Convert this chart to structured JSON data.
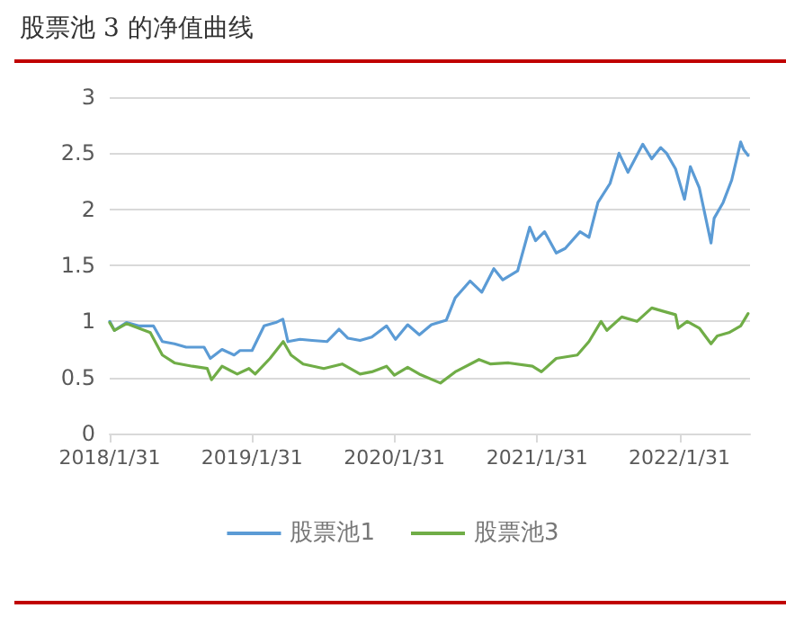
{
  "chart_data": {
    "type": "line",
    "title": "股票池 3 的净值曲线",
    "xlim": [
      "2018-01-31",
      "2022-07-31"
    ],
    "xticks": [
      {
        "value": "2018-01-31",
        "label": "2018/1/31"
      },
      {
        "value": "2019-01-31",
        "label": "2019/1/31"
      },
      {
        "value": "2020-01-31",
        "label": "2020/1/31"
      },
      {
        "value": "2021-01-31",
        "label": "2021/1/31"
      },
      {
        "value": "2022-01-31",
        "label": "2022/1/31"
      }
    ],
    "ylim": [
      0,
      3
    ],
    "yticks": [
      0,
      0.5,
      1,
      1.5,
      2,
      2.5,
      3
    ],
    "grid": "y",
    "legend": "bottom",
    "marker": "none",
    "line_style": "solid",
    "series": [
      {
        "name": "股票池1",
        "color": "#5b9bd5",
        "x": [
          "2018-01-31",
          "2018-02-12",
          "2018-03-15",
          "2018-04-15",
          "2018-05-23",
          "2018-06-15",
          "2018-07-16",
          "2018-08-15",
          "2018-09-30",
          "2018-10-16",
          "2018-11-15",
          "2018-12-16",
          "2018-12-31",
          "2019-01-31",
          "2019-03-03",
          "2019-04-02",
          "2019-04-20",
          "2019-05-03",
          "2019-06-03",
          "2019-07-04",
          "2019-08-11",
          "2019-09-11",
          "2019-10-04",
          "2019-11-04",
          "2019-12-04",
          "2020-01-11",
          "2020-02-03",
          "2020-03-05",
          "2020-04-04",
          "2020-05-05",
          "2020-06-12",
          "2020-07-05",
          "2020-08-12",
          "2020-09-11",
          "2020-10-12",
          "2020-11-04",
          "2020-12-12",
          "2021-01-12",
          "2021-01-27",
          "2021-02-19",
          "2021-03-21",
          "2021-04-13",
          "2021-05-21",
          "2021-06-13",
          "2021-07-06",
          "2021-08-06",
          "2021-08-29",
          "2021-09-21",
          "2021-10-29",
          "2021-11-21",
          "2021-12-14",
          "2021-12-29",
          "2022-01-21",
          "2022-02-13",
          "2022-02-28",
          "2022-03-23",
          "2022-04-22",
          "2022-04-30",
          "2022-05-23",
          "2022-06-14",
          "2022-07-07",
          "2022-07-15",
          "2022-07-26"
        ],
        "values": [
          1.0,
          0.92,
          0.99,
          0.96,
          0.96,
          0.82,
          0.8,
          0.77,
          0.77,
          0.67,
          0.75,
          0.7,
          0.74,
          0.74,
          0.96,
          0.99,
          1.02,
          0.82,
          0.84,
          0.83,
          0.82,
          0.93,
          0.85,
          0.83,
          0.86,
          0.96,
          0.84,
          0.97,
          0.88,
          0.97,
          1.01,
          1.21,
          1.36,
          1.26,
          1.47,
          1.37,
          1.45,
          1.84,
          1.72,
          1.8,
          1.61,
          1.65,
          1.8,
          1.75,
          2.06,
          2.23,
          2.5,
          2.33,
          2.58,
          2.45,
          2.55,
          2.5,
          2.36,
          2.09,
          2.38,
          2.19,
          1.7,
          1.92,
          2.06,
          2.26,
          2.6,
          2.53,
          2.48
        ]
      },
      {
        "name": "股票池3",
        "color": "#70ad47",
        "x": [
          "2018-01-31",
          "2018-02-12",
          "2018-03-15",
          "2018-05-15",
          "2018-06-15",
          "2018-07-16",
          "2018-08-31",
          "2018-10-08",
          "2018-10-19",
          "2018-11-15",
          "2018-12-24",
          "2019-01-23",
          "2019-02-08",
          "2019-03-18",
          "2019-04-21",
          "2019-05-11",
          "2019-06-11",
          "2019-08-03",
          "2019-09-19",
          "2019-11-04",
          "2019-12-04",
          "2020-01-11",
          "2020-01-31",
          "2020-03-05",
          "2020-04-04",
          "2020-05-28",
          "2020-07-05",
          "2020-09-04",
          "2020-10-04",
          "2020-11-19",
          "2021-01-19",
          "2021-02-11",
          "2021-03-21",
          "2021-05-14",
          "2021-06-13",
          "2021-07-14",
          "2021-07-29",
          "2021-09-05",
          "2021-10-14",
          "2021-11-21",
          "2021-12-21",
          "2022-01-21",
          "2022-01-28",
          "2022-02-20",
          "2022-03-23",
          "2022-04-22",
          "2022-05-08",
          "2022-06-07",
          "2022-07-07",
          "2022-07-26"
        ],
        "values": [
          0.99,
          0.92,
          0.98,
          0.9,
          0.7,
          0.63,
          0.6,
          0.58,
          0.48,
          0.6,
          0.53,
          0.58,
          0.53,
          0.67,
          0.82,
          0.7,
          0.62,
          0.58,
          0.62,
          0.53,
          0.55,
          0.6,
          0.52,
          0.59,
          0.53,
          0.45,
          0.55,
          0.66,
          0.62,
          0.63,
          0.6,
          0.55,
          0.67,
          0.7,
          0.82,
          1.0,
          0.92,
          1.04,
          1.0,
          1.12,
          1.09,
          1.06,
          0.94,
          1.0,
          0.94,
          0.8,
          0.87,
          0.9,
          0.96,
          1.07
        ]
      }
    ]
  }
}
